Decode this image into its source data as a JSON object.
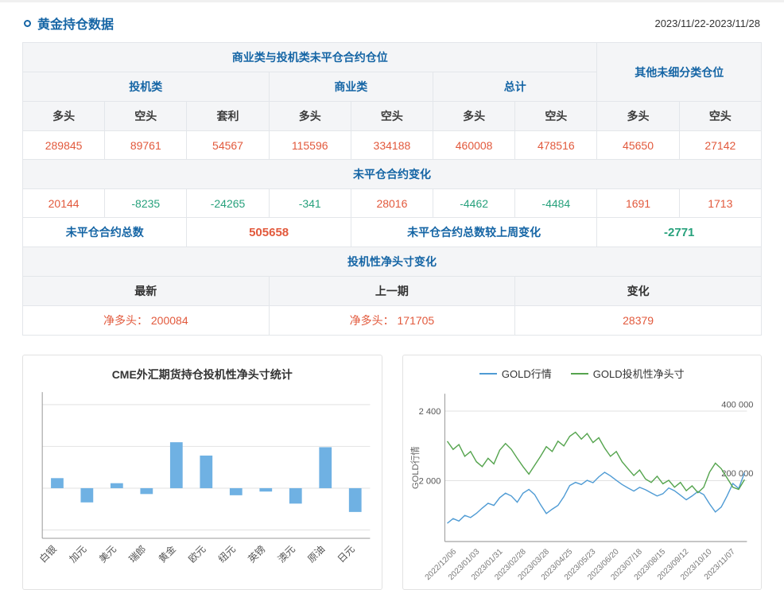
{
  "header": {
    "title": "黄金持仓数据",
    "date_range": "2023/11/22-2023/11/28"
  },
  "colors": {
    "title_blue": "#1565a5",
    "value_orange": "#e2593c",
    "value_green": "#27a17c",
    "header_bg": "#f4f5f7",
    "bar_blue": "#6fb1e3",
    "line_blue": "#4f9bd4",
    "line_green": "#55a44e"
  },
  "table": {
    "group_header_main": "商业类与投机类未平仓合约仓位",
    "group_header_other": "其他未细分类仓位",
    "categories": [
      "投机类",
      "商业类",
      "总计"
    ],
    "col_headers": [
      "多头",
      "空头",
      "套利",
      "多头",
      "空头",
      "多头",
      "空头",
      "多头",
      "空头"
    ],
    "position_values": [
      "289845",
      "89761",
      "54567",
      "115596",
      "334188",
      "460008",
      "478516",
      "45650",
      "27142"
    ],
    "change_section_title": "未平仓合约变化",
    "change_values": [
      "20144",
      "-8235",
      "-24265",
      "-341",
      "28016",
      "-4462",
      "-4484",
      "1691",
      "1713"
    ],
    "total_label": "未平仓合约总数",
    "total_value": "505658",
    "weekly_change_label": "未平仓合约总数较上周变化",
    "weekly_change_value": "-2771",
    "net_section_title": "投机性净头寸变化",
    "net_headers": [
      "最新",
      "上一期",
      "变化"
    ],
    "net_values": [
      "净多头： 200084",
      "净多头： 171705",
      "28379"
    ]
  },
  "chart_data": [
    {
      "type": "bar",
      "title": "CME外汇期货持仓投机性净头寸统计",
      "categories": [
        "白银",
        "加元",
        "美元",
        "瑞郎",
        "黄金",
        "欧元",
        "纽元",
        "英镑",
        "澳元",
        "原油",
        "日元"
      ],
      "values": [
        12000,
        -17000,
        6000,
        -7000,
        55000,
        39000,
        -8500,
        -4000,
        -18500,
        49000,
        -28500
      ],
      "ylim": [
        -60000,
        115000
      ],
      "gridlines": [
        100000,
        50000,
        0,
        -50000
      ],
      "bar_color": "#6fb1e3",
      "xlabel": "",
      "ylabel": "",
      "grid": true,
      "legend": false
    },
    {
      "type": "line",
      "title": "",
      "legend_position": "top",
      "ylabel_left": "GOLD行情",
      "left_axis": {
        "min": 1650,
        "max": 2500,
        "ticks": [
          {
            "v": 2400,
            "label": "2 400"
          },
          {
            "v": 2000,
            "label": "2 000"
          }
        ]
      },
      "right_axis": {
        "min": 20000,
        "max": 450000,
        "ticks": [
          {
            "v": 400000,
            "label": "400 000"
          },
          {
            "v": 200000,
            "label": "200 000"
          }
        ]
      },
      "x_tick_labels": [
        "2022/12/06",
        "2023/01/03",
        "2023/01/31",
        "2023/02/28",
        "2023/03/28",
        "2023/04/25",
        "2023/05/23",
        "2023/06/20",
        "2023/07/18",
        "2023/08/15",
        "2023/09/12",
        "2023/10/10",
        "2023/11/07"
      ],
      "series": [
        {
          "name": "GOLD行情",
          "axis": "left",
          "color": "#4f9bd4",
          "values": [
            1755,
            1782,
            1768,
            1800,
            1788,
            1812,
            1842,
            1870,
            1858,
            1902,
            1928,
            1912,
            1876,
            1928,
            1950,
            1920,
            1862,
            1811,
            1836,
            1858,
            1908,
            1972,
            1990,
            1978,
            2002,
            1988,
            2022,
            2048,
            2028,
            2002,
            1978,
            1958,
            1940,
            1962,
            1948,
            1930,
            1912,
            1925,
            1958,
            1942,
            1916,
            1890,
            1912,
            1938,
            1920,
            1866,
            1820,
            1848,
            1912,
            1984,
            1955,
            2046
          ]
        },
        {
          "name": "GOLD投机性净头寸",
          "axis": "right",
          "color": "#55a44e",
          "values": [
            312000,
            288000,
            302000,
            268000,
            282000,
            252000,
            238000,
            262000,
            246000,
            286000,
            305000,
            288000,
            262000,
            238000,
            216000,
            242000,
            268000,
            296000,
            282000,
            312000,
            298000,
            326000,
            338000,
            318000,
            334000,
            308000,
            322000,
            292000,
            268000,
            282000,
            252000,
            232000,
            212000,
            228000,
            202000,
            192000,
            210000,
            188000,
            198000,
            178000,
            192000,
            168000,
            182000,
            162000,
            178000,
            222000,
            248000,
            232000,
            205000,
            178000,
            171705,
            200084
          ]
        }
      ]
    }
  ]
}
